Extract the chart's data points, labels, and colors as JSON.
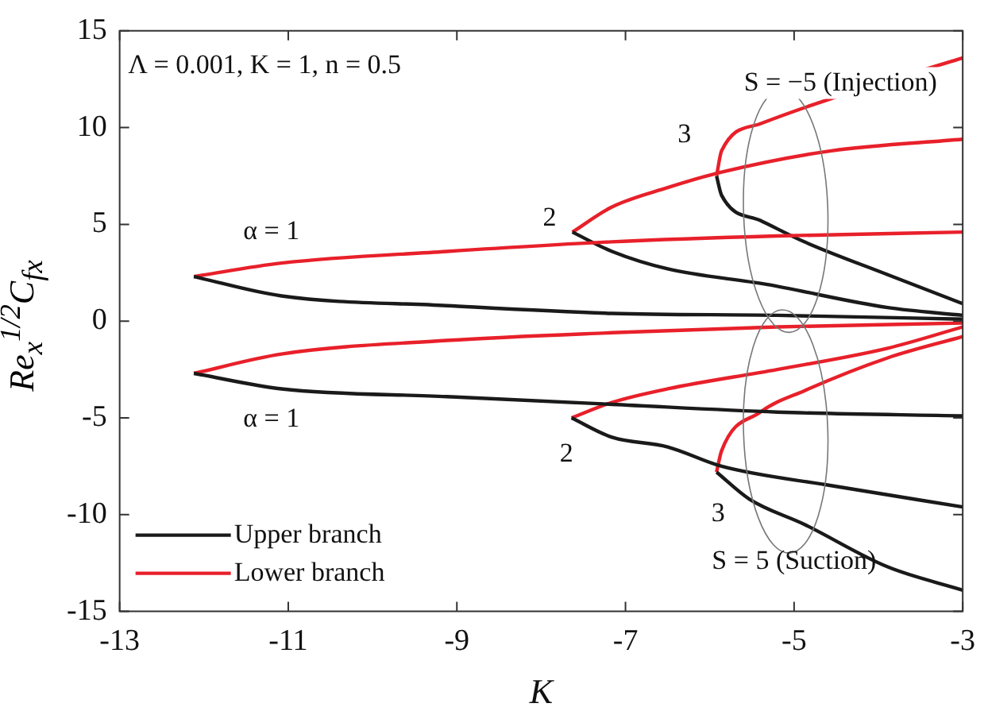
{
  "chart_data": {
    "type": "line",
    "xlabel": "K",
    "ylabel": "Re$_{x}$$^{1/2}$C$_{fx}$",
    "xlim": [
      -13,
      -3
    ],
    "xticks": [
      -13,
      -11,
      -9,
      -7,
      -5,
      -3
    ],
    "ylim": [
      -15,
      15
    ],
    "yticks": [
      -15,
      -10,
      -5,
      0,
      5,
      10,
      15
    ],
    "grid": false,
    "legend": "bottom left",
    "marker": "none",
    "line_style": "solid",
    "annotations": [
      "Λ = 0.001, K = 1, n = 0.5",
      "α = 1",
      "2",
      "3",
      "α = 1",
      "2",
      "3",
      "S = −5 (Injection)",
      "S = 5 (Suction)"
    ],
    "series": [
      {
        "name": "Upper branch",
        "color": "#1a1a1a",
        "x": [
          -12.12,
          -11.08,
          -9.12,
          -7.16,
          -5.2,
          -3
        ],
        "values": [
          2.3,
          1.3,
          0.8,
          0.4,
          0.3,
          0.1
        ]
      },
      {
        "name": "Lower branch",
        "color": "#e8202a",
        "x": [
          -12.12,
          -11.08,
          -9.12,
          -7.16,
          -5.2,
          -3
        ],
        "values": [
          2.3,
          3.0,
          3.6,
          4.1,
          4.4,
          4.6
        ]
      },
      {
        "color": "#1a1a1a",
        "x": [
          -7.63,
          -7.16,
          -6.5,
          -5.33,
          -3.89,
          -3
        ],
        "values": [
          4.6,
          3.6,
          2.7,
          1.9,
          0.7,
          0.3
        ]
      },
      {
        "color": "#e8202a",
        "x": [
          -7.63,
          -7.16,
          -6.5,
          -5.86,
          -4.56,
          -3
        ],
        "values": [
          4.6,
          5.9,
          6.9,
          7.7,
          8.8,
          9.4
        ]
      },
      {
        "color": "#1a1a1a",
        "x": [
          -5.92,
          -5.86,
          -5.4,
          -4.88,
          -3.89,
          -3
        ],
        "values": [
          7.5,
          6.5,
          5.2,
          4.1,
          2.4,
          0.9
        ]
      },
      {
        "color": "#e8202a",
        "x": [
          -5.92,
          -5.86,
          -5.4,
          -4.56,
          -3
        ],
        "values": [
          7.5,
          8.8,
          10.2,
          11.5,
          13.6
        ]
      },
      {
        "color": "#1a1a1a",
        "x": [
          -12.12,
          -11.08,
          -9.12,
          -7.16,
          -5.2,
          -3
        ],
        "values": [
          -2.7,
          -3.5,
          -3.9,
          -4.3,
          -4.7,
          -4.9
        ]
      },
      {
        "color": "#e8202a",
        "x": [
          -12.12,
          -11.08,
          -9.12,
          -7.16,
          -5.2,
          -3
        ],
        "values": [
          -2.7,
          -1.7,
          -1.0,
          -0.6,
          -0.3,
          -0.1
        ]
      },
      {
        "color": "#1a1a1a",
        "x": [
          -7.64,
          -7.16,
          -6.5,
          -5.86,
          -4.56,
          -3
        ],
        "values": [
          -5.0,
          -6.0,
          -6.5,
          -7.5,
          -8.5,
          -9.6
        ]
      },
      {
        "color": "#e8202a",
        "x": [
          -7.64,
          -7.16,
          -6.5,
          -5.2,
          -3.89,
          -3
        ],
        "values": [
          -5.0,
          -4.2,
          -3.5,
          -2.5,
          -1.4,
          -0.3
        ]
      },
      {
        "color": "#1a1a1a",
        "x": [
          -5.92,
          -5.53,
          -4.88,
          -3.89,
          -3
        ],
        "values": [
          -7.8,
          -9.2,
          -10.5,
          -12.7,
          -13.9
        ]
      },
      {
        "color": "#e8202a",
        "x": [
          -5.92,
          -5.86,
          -5.4,
          -4.88,
          -3.89,
          -3
        ],
        "values": [
          -7.8,
          -6.7,
          -4.7,
          -3.6,
          -1.9,
          -0.8
        ]
      }
    ]
  }
}
